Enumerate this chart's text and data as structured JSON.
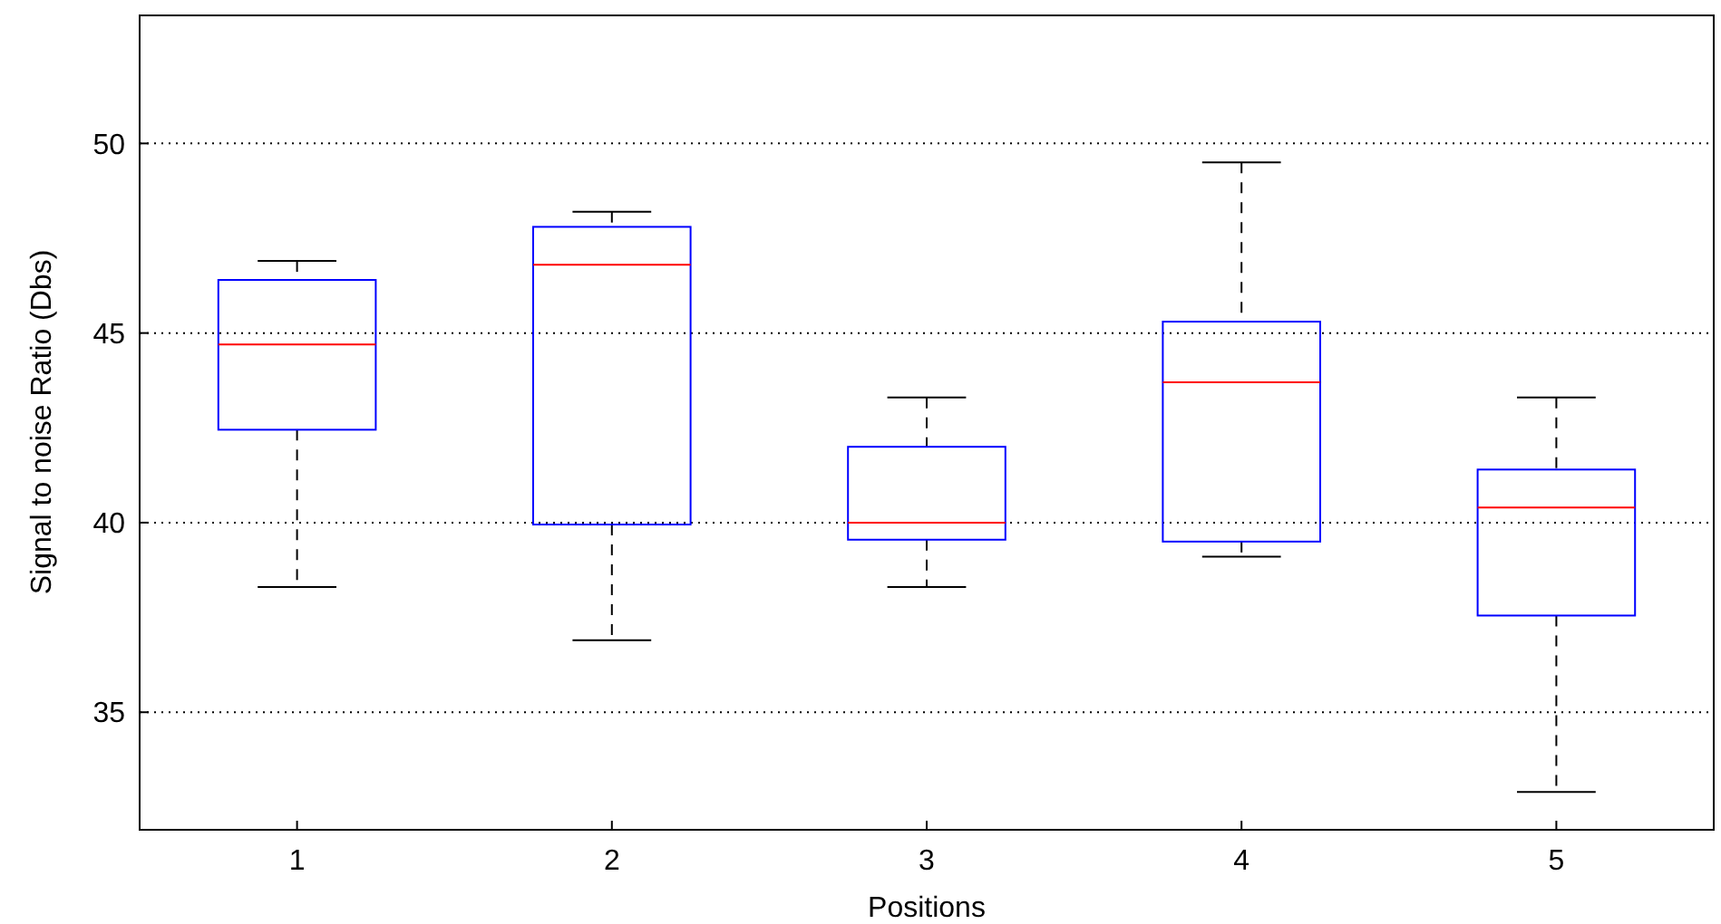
{
  "chart_data": {
    "type": "box",
    "xlabel": "Positions",
    "ylabel": "Signal to noise Ratio (Dbs)",
    "categories": [
      "1",
      "2",
      "3",
      "4",
      "5"
    ],
    "boxes": [
      {
        "low": 38.3,
        "q1": 42.45,
        "median": 44.7,
        "q3": 46.4,
        "high": 46.9
      },
      {
        "low": 36.9,
        "q1": 39.95,
        "median": 46.8,
        "q3": 47.8,
        "high": 48.2
      },
      {
        "low": 38.3,
        "q1": 39.55,
        "median": 40.0,
        "q3": 42.0,
        "high": 43.3
      },
      {
        "low": 39.1,
        "q1": 39.5,
        "median": 43.7,
        "q3": 45.3,
        "high": 49.5
      },
      {
        "low": 32.9,
        "q1": 37.55,
        "median": 40.4,
        "q3": 41.4,
        "high": 43.3
      }
    ],
    "color": "#0000ff",
    "ylim": [
      31.9,
      53.4
    ],
    "yticks": [
      35,
      40,
      45,
      50
    ],
    "grid": "y",
    "line_style": "dashed"
  }
}
